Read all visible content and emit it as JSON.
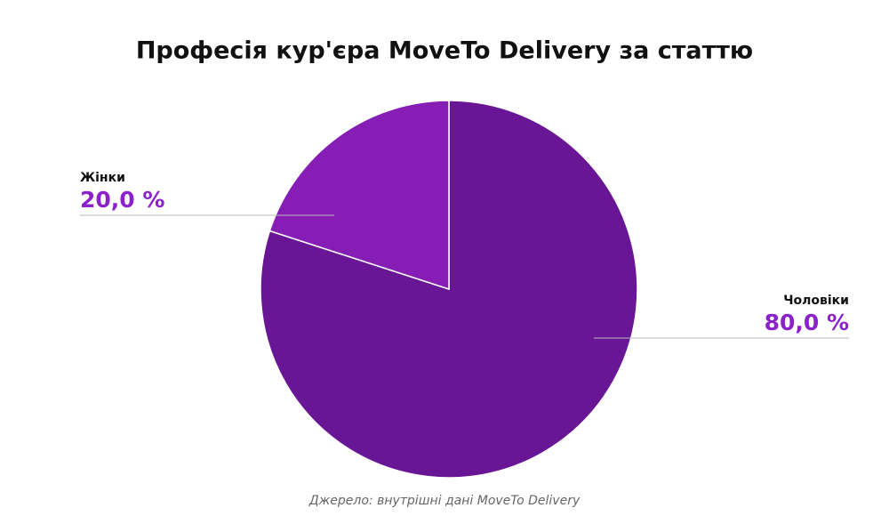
{
  "chart_data": {
    "type": "pie",
    "title": "Професія кур'єра MoveTo Delivery за статтю",
    "categories": [
      "Чоловіки",
      "Жінки"
    ],
    "values": [
      80,
      20
    ],
    "value_labels": [
      "80,0 %",
      "20,0 %"
    ],
    "colors": [
      "#691696",
      "#861db5"
    ],
    "source": "Джерело: внутрішні дані MoveTo Delivery"
  }
}
